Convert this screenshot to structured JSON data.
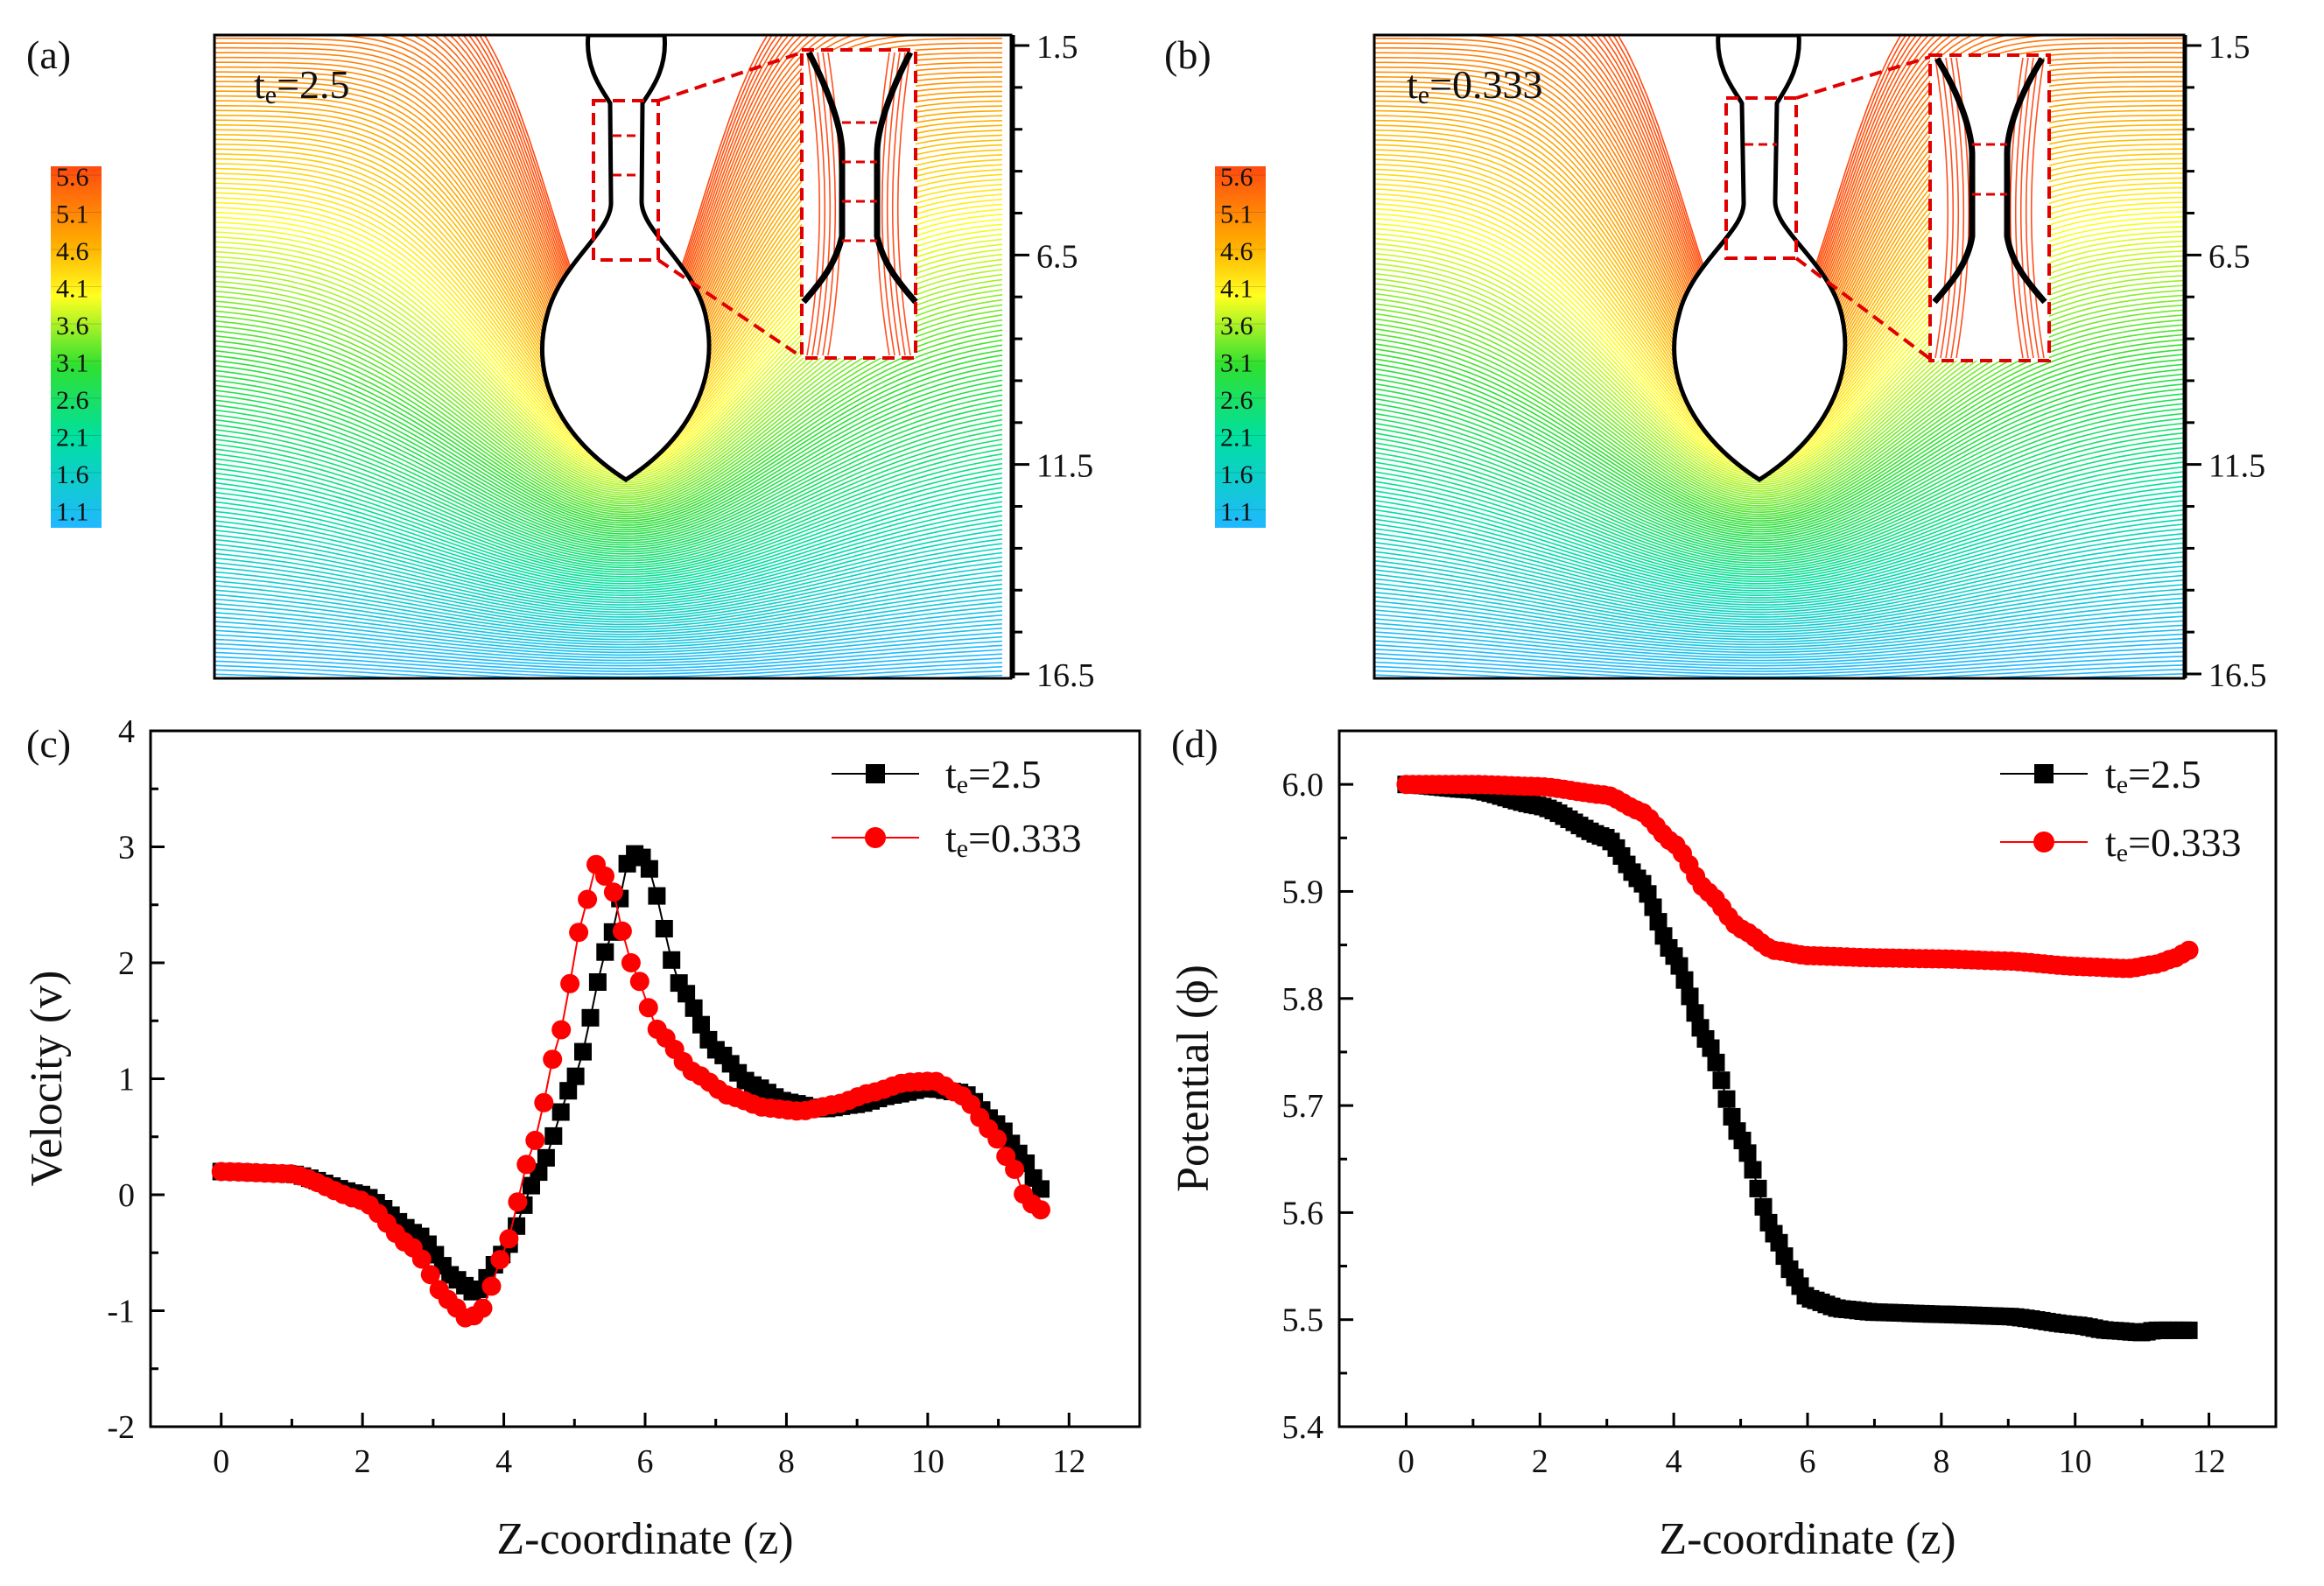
{
  "figure": {
    "panels": [
      {
        "label": "(a)",
        "annotation": "te=2.5",
        "annotation_main": "t",
        "annotation_sub": "e",
        "annotation_rest": "=2.5",
        "colorbar_ticks": [
          "5.6",
          "5.1",
          "4.6",
          "4.1",
          "3.6",
          "3.1",
          "2.6",
          "2.1",
          "1.6",
          "1.1"
        ],
        "axis_ticks": [
          "1.5",
          "6.5",
          "11.5",
          "16.5"
        ],
        "inset_necks": 3
      },
      {
        "label": "(b)",
        "annotation": "te=0.333",
        "annotation_main": "t",
        "annotation_sub": "e",
        "annotation_rest": "=0.333",
        "colorbar_ticks": [
          "5.6",
          "5.1",
          "4.6",
          "4.1",
          "3.6",
          "3.1",
          "2.6",
          "2.1",
          "1.6",
          "1.1"
        ],
        "axis_ticks": [
          "1.5",
          "6.5",
          "11.5",
          "16.5"
        ],
        "inset_necks": 2
      }
    ],
    "colors": {
      "contour_scale": [
        "#00bfff",
        "#00ff7f",
        "#ffff00",
        "#ff4500"
      ],
      "series_black": "#000000",
      "series_red": "#ff0000",
      "inset_box": "#e00000"
    }
  },
  "chart_data": [
    {
      "id": "c",
      "label": "(c)",
      "type": "scatter",
      "title": "",
      "xlabel": "Z-coordinate (z)",
      "ylabel": "Velocity (v)",
      "xlim": [
        -1,
        13
      ],
      "ylim": [
        -2,
        4
      ],
      "xticks": [
        0,
        2,
        4,
        6,
        8,
        10,
        12
      ],
      "yticks": [
        -2,
        -1,
        0,
        1,
        2,
        3,
        4
      ],
      "ytick_labels": [
        "-2",
        "-1",
        "0",
        "1",
        "2",
        "3",
        "4"
      ],
      "legend_position": "top-right",
      "series": [
        {
          "name": "te=2.5",
          "legend_main": "t",
          "legend_sub": "e",
          "legend_rest": "=2.5",
          "marker": "square",
          "color": "#000000",
          "x_range": [
            0,
            11.6
          ],
          "points": [
            [
              0,
              0.2
            ],
            [
              1,
              0.18
            ],
            [
              2,
              0.0
            ],
            [
              2.8,
              -0.35
            ],
            [
              3.3,
              -0.72
            ],
            [
              3.6,
              -0.85
            ],
            [
              4.0,
              -0.5
            ],
            [
              4.5,
              0.2
            ],
            [
              5.0,
              1.0
            ],
            [
              5.5,
              2.2
            ],
            [
              5.8,
              2.95
            ],
            [
              6.0,
              2.9
            ],
            [
              6.5,
              1.8
            ],
            [
              7.0,
              1.25
            ],
            [
              7.5,
              0.95
            ],
            [
              8.0,
              0.8
            ],
            [
              8.5,
              0.74
            ],
            [
              9.0,
              0.78
            ],
            [
              9.5,
              0.86
            ],
            [
              10.0,
              0.92
            ],
            [
              10.5,
              0.88
            ],
            [
              11.0,
              0.6
            ],
            [
              11.3,
              0.35
            ],
            [
              11.6,
              0.05
            ]
          ]
        },
        {
          "name": "te=0.333",
          "legend_main": "t",
          "legend_sub": "e",
          "legend_rest": "=0.333",
          "marker": "circle",
          "color": "#ff0000",
          "x_range": [
            0,
            11.6
          ],
          "points": [
            [
              0,
              0.2
            ],
            [
              1,
              0.18
            ],
            [
              2,
              -0.05
            ],
            [
              2.7,
              -0.45
            ],
            [
              3.2,
              -0.9
            ],
            [
              3.5,
              -1.08
            ],
            [
              3.7,
              -0.98
            ],
            [
              4.0,
              -0.5
            ],
            [
              4.4,
              0.4
            ],
            [
              4.8,
              1.4
            ],
            [
              5.1,
              2.35
            ],
            [
              5.3,
              2.85
            ],
            [
              5.5,
              2.7
            ],
            [
              5.8,
              2.0
            ],
            [
              6.2,
              1.4
            ],
            [
              6.7,
              1.05
            ],
            [
              7.2,
              0.85
            ],
            [
              7.7,
              0.75
            ],
            [
              8.2,
              0.72
            ],
            [
              8.7,
              0.78
            ],
            [
              9.2,
              0.88
            ],
            [
              9.7,
              0.97
            ],
            [
              10.1,
              0.98
            ],
            [
              10.5,
              0.85
            ],
            [
              10.9,
              0.55
            ],
            [
              11.2,
              0.25
            ],
            [
              11.4,
              -0.05
            ],
            [
              11.6,
              -0.13
            ]
          ]
        }
      ]
    },
    {
      "id": "d",
      "label": "(d)",
      "type": "scatter",
      "title": "",
      "xlabel": "Z-coordinate (z)",
      "ylabel": "Potential (ϕ)",
      "xlim": [
        -1,
        13
      ],
      "ylim": [
        5.4,
        6.05
      ],
      "xticks": [
        0,
        2,
        4,
        6,
        8,
        10,
        12
      ],
      "yticks": [
        5.4,
        5.5,
        5.6,
        5.7,
        5.8,
        5.9,
        6.0
      ],
      "ytick_labels": [
        "5.4",
        "5.5",
        "5.6",
        "5.7",
        "5.8",
        "5.9",
        "6.0"
      ],
      "legend_position": "top-right",
      "series": [
        {
          "name": "te=2.5",
          "legend_main": "t",
          "legend_sub": "e",
          "legend_rest": "=2.5",
          "marker": "square",
          "color": "#000000",
          "x_range": [
            0,
            11.7
          ],
          "points": [
            [
              0,
              6.0
            ],
            [
              1.0,
              5.995
            ],
            [
              2.0,
              5.98
            ],
            [
              3.0,
              5.95
            ],
            [
              3.5,
              5.91
            ],
            [
              4.0,
              5.84
            ],
            [
              4.5,
              5.76
            ],
            [
              5.0,
              5.67
            ],
            [
              5.5,
              5.58
            ],
            [
              5.8,
              5.54
            ],
            [
              6.0,
              5.52
            ],
            [
              6.5,
              5.51
            ],
            [
              7.0,
              5.507
            ],
            [
              8.0,
              5.505
            ],
            [
              9.0,
              5.503
            ],
            [
              10.0,
              5.495
            ],
            [
              10.5,
              5.49
            ],
            [
              11.0,
              5.488
            ],
            [
              11.2,
              5.49
            ],
            [
              11.7,
              5.49
            ]
          ]
        },
        {
          "name": "te=0.333",
          "legend_main": "t",
          "legend_sub": "e",
          "legend_rest": "=0.333",
          "marker": "circle",
          "color": "#ff0000",
          "x_range": [
            0,
            11.7
          ],
          "points": [
            [
              0,
              6.0
            ],
            [
              1.0,
              6.0
            ],
            [
              2.0,
              5.998
            ],
            [
              3.0,
              5.99
            ],
            [
              3.5,
              5.975
            ],
            [
              4.0,
              5.945
            ],
            [
              4.5,
              5.9
            ],
            [
              5.0,
              5.865
            ],
            [
              5.5,
              5.845
            ],
            [
              6.0,
              5.84
            ],
            [
              7.0,
              5.838
            ],
            [
              8.0,
              5.837
            ],
            [
              9.0,
              5.835
            ],
            [
              10.0,
              5.83
            ],
            [
              10.8,
              5.828
            ],
            [
              11.2,
              5.832
            ],
            [
              11.5,
              5.838
            ],
            [
              11.7,
              5.845
            ]
          ]
        }
      ]
    }
  ]
}
